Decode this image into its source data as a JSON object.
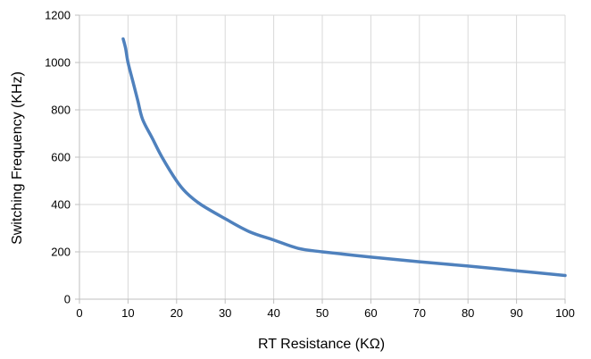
{
  "chart_data": {
    "type": "line",
    "xlabel": "RT Resistance (KΩ)",
    "ylabel": "Switching Frequency (KHz)",
    "xlim": [
      0,
      100
    ],
    "ylim": [
      0,
      1200
    ],
    "x_ticks": [
      "0",
      "10",
      "20",
      "30",
      "40",
      "50",
      "60",
      "70",
      "80",
      "90",
      "100"
    ],
    "y_ticks": [
      "0",
      "200",
      "400",
      "600",
      "800",
      "1000",
      "1200"
    ],
    "grid": true,
    "line_color": "#4F81BD",
    "series": [
      {
        "x": [
          9,
          9.5,
          10,
          11,
          12,
          13,
          15,
          17,
          20,
          22,
          25,
          30,
          35,
          40,
          45,
          50,
          60,
          70,
          80,
          90,
          100
        ],
        "y": [
          1100,
          1060,
          1000,
          920,
          840,
          760,
          680,
          600,
          500,
          450,
          400,
          340,
          285,
          250,
          215,
          200,
          178,
          158,
          140,
          120,
          100
        ]
      }
    ]
  }
}
